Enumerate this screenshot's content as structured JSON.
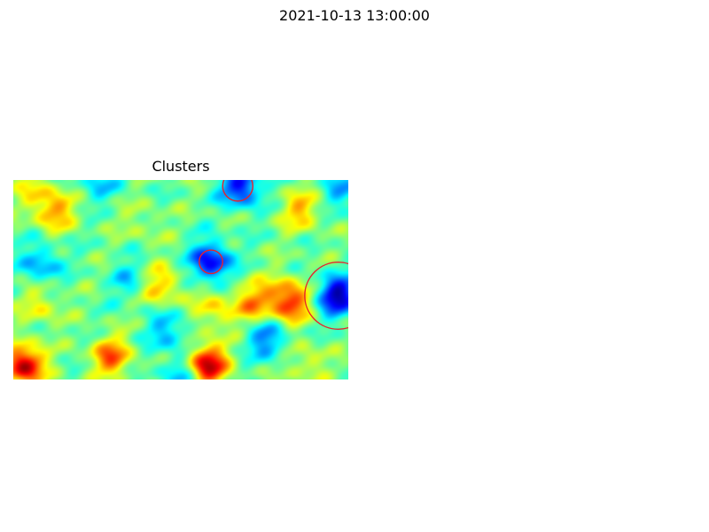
{
  "figure": {
    "suptitle": "2021-10-13 13:00:00"
  },
  "chart_data": {
    "type": "heatmap",
    "title": "Clusters",
    "colormap": "jet",
    "axis_visible": false,
    "grid": false,
    "hotspots": [
      {
        "x": 0.12,
        "y": 0.15,
        "value": 0.72
      },
      {
        "x": 0.06,
        "y": 0.05,
        "value": 0.6
      },
      {
        "x": 0.27,
        "y": 0.1,
        "value": 0.55
      },
      {
        "x": 0.03,
        "y": 0.93,
        "value": 0.95
      },
      {
        "x": 0.58,
        "y": 0.93,
        "value": 0.95
      },
      {
        "x": 0.29,
        "y": 0.89,
        "value": 0.78
      },
      {
        "x": 0.83,
        "y": 0.62,
        "value": 0.8
      },
      {
        "x": 0.72,
        "y": 0.62,
        "value": 0.72
      },
      {
        "x": 0.44,
        "y": 0.53,
        "value": 0.7
      },
      {
        "x": 0.6,
        "y": 0.65,
        "value": 0.65
      },
      {
        "x": 0.08,
        "y": 0.63,
        "value": 0.62
      },
      {
        "x": 0.39,
        "y": 0.22,
        "value": 0.55
      },
      {
        "x": 0.86,
        "y": 0.15,
        "value": 0.68
      },
      {
        "x": 0.88,
        "y": 0.92,
        "value": 0.6
      },
      {
        "x": 0.96,
        "y": 0.03,
        "value": 0.55
      },
      {
        "x": 0.8,
        "y": 0.55,
        "value": 0.58
      }
    ],
    "coldspots": [
      {
        "x": 0.97,
        "y": 0.58,
        "value": 0.05
      },
      {
        "x": 0.59,
        "y": 0.41,
        "value": 0.1
      },
      {
        "x": 0.68,
        "y": 0.03,
        "value": 0.12
      },
      {
        "x": 0.08,
        "y": 0.42,
        "value": 0.28
      },
      {
        "x": 0.76,
        "y": 0.8,
        "value": 0.25
      },
      {
        "x": 0.46,
        "y": 0.76,
        "value": 0.3
      },
      {
        "x": 0.26,
        "y": 0.04,
        "value": 0.3
      },
      {
        "x": 0.98,
        "y": 0.04,
        "value": 0.25
      },
      {
        "x": 0.35,
        "y": 0.5,
        "value": 0.35
      },
      {
        "x": 0.5,
        "y": 0.98,
        "value": 0.32
      }
    ],
    "clusters": [
      {
        "x": 0.67,
        "y": 0.03,
        "r": 0.045,
        "color": "#e8212b"
      },
      {
        "x": 0.59,
        "y": 0.41,
        "r": 0.035,
        "color": "#e8212b"
      },
      {
        "x": 0.97,
        "y": 0.58,
        "r": 0.1,
        "color": "#e8212b"
      }
    ]
  }
}
